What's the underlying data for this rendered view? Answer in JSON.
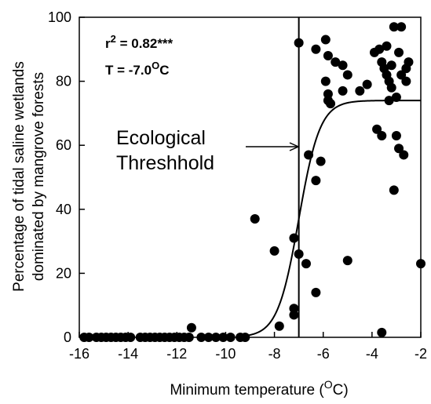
{
  "chart_data": {
    "type": "scatter",
    "title": "",
    "xlabel": "Minimum temperature (",
    "xlabel_superscript": "O",
    "xlabel_suffix": "C)",
    "ylabel_line1": "Percentage of tidal saline wetlands",
    "ylabel_line2": "dominated by mangrove forests",
    "xlim": [
      -16,
      -2
    ],
    "ylim": [
      0,
      100
    ],
    "x_ticks": [
      -16,
      -14,
      -12,
      -10,
      -8,
      -6,
      -4,
      -2
    ],
    "y_ticks": [
      0,
      20,
      40,
      60,
      80,
      100
    ],
    "x_tick_labels": [
      "-16",
      "-14",
      "-12",
      "-10",
      "-8",
      "-6",
      "-4",
      "-2"
    ],
    "y_tick_labels": [
      "0",
      "20",
      "40",
      "60",
      "80",
      "100"
    ],
    "grid": false,
    "stats": {
      "r2_prefix": "r",
      "r2_exponent": "2",
      "r2_value": " = 0.82***",
      "threshold_prefix": "T = -7.0",
      "threshold_superscript": "O",
      "threshold_suffix": "C"
    },
    "threshold_x": -7.0,
    "annotation": {
      "line1": "Ecological",
      "line2": "Threshhold"
    },
    "fit_curve": {
      "type": "logistic",
      "upper": 74,
      "midpoint": -7.0,
      "rate": 2.3
    },
    "points": [
      [
        -15.8,
        0
      ],
      [
        -15.6,
        0
      ],
      [
        -15.3,
        0
      ],
      [
        -15.1,
        0
      ],
      [
        -14.9,
        0
      ],
      [
        -14.7,
        0
      ],
      [
        -14.5,
        0
      ],
      [
        -14.3,
        0
      ],
      [
        -14.1,
        0
      ],
      [
        -13.9,
        0
      ],
      [
        -13.5,
        0
      ],
      [
        -13.3,
        0
      ],
      [
        -13.1,
        0
      ],
      [
        -12.9,
        0
      ],
      [
        -12.7,
        0
      ],
      [
        -12.5,
        0
      ],
      [
        -12.3,
        0
      ],
      [
        -12.1,
        0
      ],
      [
        -11.9,
        0
      ],
      [
        -11.7,
        0
      ],
      [
        -11.5,
        0
      ],
      [
        -11.0,
        0
      ],
      [
        -10.7,
        0
      ],
      [
        -10.4,
        0
      ],
      [
        -10.1,
        0
      ],
      [
        -9.8,
        0
      ],
      [
        -9.4,
        0
      ],
      [
        -9.2,
        0
      ],
      [
        -11.4,
        3
      ],
      [
        -7.8,
        3.5
      ],
      [
        -7.2,
        7
      ],
      [
        -7.2,
        9
      ],
      [
        -8.8,
        37
      ],
      [
        -8.0,
        27
      ],
      [
        -7.2,
        31
      ],
      [
        -7.0,
        26
      ],
      [
        -6.7,
        23
      ],
      [
        -6.3,
        14
      ],
      [
        -6.6,
        57
      ],
      [
        -6.3,
        49
      ],
      [
        -6.1,
        55
      ],
      [
        -7.0,
        92
      ],
      [
        -6.3,
        90
      ],
      [
        -5.9,
        93
      ],
      [
        -5.8,
        88
      ],
      [
        -5.5,
        86
      ],
      [
        -5.2,
        85
      ],
      [
        -5.0,
        82
      ],
      [
        -5.9,
        80
      ],
      [
        -5.8,
        76
      ],
      [
        -5.8,
        74
      ],
      [
        -5.7,
        73
      ],
      [
        -5.2,
        77
      ],
      [
        -4.5,
        77
      ],
      [
        -4.2,
        79
      ],
      [
        -3.9,
        89
      ],
      [
        -3.7,
        90
      ],
      [
        -3.6,
        86
      ],
      [
        -3.5,
        84
      ],
      [
        -3.4,
        82
      ],
      [
        -3.3,
        80
      ],
      [
        -3.2,
        85
      ],
      [
        -3.1,
        97
      ],
      [
        -2.8,
        97
      ],
      [
        -2.9,
        89
      ],
      [
        -2.8,
        82
      ],
      [
        -2.6,
        80
      ],
      [
        -2.5,
        86
      ],
      [
        -3.2,
        78
      ],
      [
        -3.0,
        75
      ],
      [
        -3.3,
        74
      ],
      [
        -3.8,
        65
      ],
      [
        -3.6,
        63
      ],
      [
        -3.0,
        63
      ],
      [
        -2.9,
        59
      ],
      [
        -2.7,
        57
      ],
      [
        -3.1,
        46
      ],
      [
        -5.0,
        24
      ],
      [
        -2.0,
        23
      ],
      [
        -3.6,
        1.5
      ],
      [
        -3.4,
        91
      ],
      [
        -2.6,
        84
      ]
    ]
  }
}
